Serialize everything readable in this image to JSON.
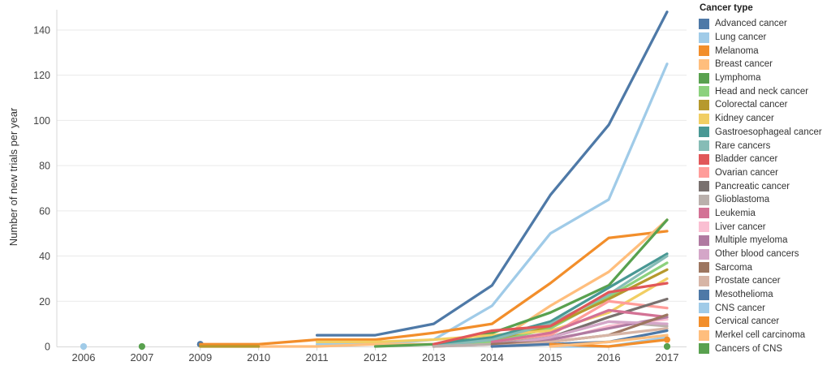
{
  "chart": {
    "legend_title": "Cancer type"
  },
  "chart_data": {
    "type": "line",
    "title": "",
    "xlabel": "",
    "ylabel": "Number of new trials per year",
    "x_labels": [
      "2006",
      "2007",
      "2009",
      "2010",
      "2011",
      "2012",
      "2013",
      "2014",
      "2015",
      "2016",
      "2017"
    ],
    "yticks": [
      0,
      20,
      40,
      60,
      80,
      100,
      120,
      140
    ],
    "ylim": [
      0,
      150
    ],
    "grid": "horizontal",
    "legend_position": "right",
    "legend_title": "Cancer type",
    "axis_text_color": "#444444",
    "grid_color": "#e9e9e9",
    "axis_line_color": "#d7d7d7",
    "series": [
      {
        "name": "Advanced cancer",
        "color": "#4e79a7",
        "values": [
          null,
          null,
          1,
          null,
          5,
          5,
          10,
          27,
          67,
          98,
          148
        ],
        "dots": [
          2
        ]
      },
      {
        "name": "Lung cancer",
        "color": "#a0cbe8",
        "values": [
          0,
          null,
          null,
          null,
          1,
          1,
          3,
          18,
          50,
          65,
          125
        ],
        "dots": [
          0
        ]
      },
      {
        "name": "Melanoma",
        "color": "#f28e2b",
        "values": [
          null,
          null,
          1,
          1,
          3,
          3,
          6,
          10,
          28,
          48,
          51
        ],
        "dots": []
      },
      {
        "name": "Breast cancer",
        "color": "#ffbe7d",
        "values": [
          null,
          null,
          null,
          0,
          0,
          1,
          1,
          1,
          18,
          33,
          56
        ],
        "dots": []
      },
      {
        "name": "Lymphoma",
        "color": "#59a14f",
        "values": [
          null,
          0,
          null,
          null,
          null,
          0,
          1,
          6,
          15,
          27,
          56
        ],
        "dots": [
          1
        ]
      },
      {
        "name": "Head and neck cancer",
        "color": "#8cd17d",
        "values": [
          null,
          null,
          null,
          null,
          null,
          null,
          0,
          2,
          8,
          22,
          37
        ],
        "dots": []
      },
      {
        "name": "Colorectal cancer",
        "color": "#b6992d",
        "values": [
          null,
          null,
          0,
          0,
          null,
          null,
          1,
          3,
          9,
          21,
          34
        ],
        "dots": []
      },
      {
        "name": "Kidney cancer",
        "color": "#f1ce63",
        "values": [
          null,
          null,
          null,
          null,
          2,
          2,
          3,
          5,
          7,
          15,
          30
        ],
        "dots": []
      },
      {
        "name": "Gastroesophageal cancer",
        "color": "#499894",
        "values": [
          null,
          null,
          null,
          null,
          null,
          null,
          1,
          4,
          11,
          26,
          41
        ],
        "dots": []
      },
      {
        "name": "Rare cancers",
        "color": "#86bcb6",
        "values": [
          null,
          null,
          null,
          null,
          null,
          null,
          0,
          3,
          10,
          23,
          40
        ],
        "dots": []
      },
      {
        "name": "Bladder cancer",
        "color": "#e15759",
        "values": [
          null,
          null,
          null,
          null,
          null,
          null,
          1,
          7,
          9,
          24,
          28
        ],
        "dots": []
      },
      {
        "name": "Ovarian cancer",
        "color": "#ff9d9a",
        "values": [
          null,
          null,
          null,
          null,
          null,
          null,
          0,
          1,
          5,
          20,
          17
        ],
        "dots": []
      },
      {
        "name": "Pancreatic cancer",
        "color": "#79706e",
        "values": [
          null,
          null,
          null,
          null,
          null,
          null,
          null,
          1,
          4,
          13,
          21
        ],
        "dots": []
      },
      {
        "name": "Glioblastoma",
        "color": "#bab0ac",
        "values": [
          null,
          null,
          null,
          null,
          null,
          null,
          0,
          1,
          4,
          11,
          9
        ],
        "dots": []
      },
      {
        "name": "Leukemia",
        "color": "#d37295",
        "values": [
          null,
          null,
          null,
          null,
          null,
          null,
          null,
          2,
          6,
          16,
          13
        ],
        "dots": []
      },
      {
        "name": "Liver cancer",
        "color": "#fabfd2",
        "values": [
          null,
          null,
          null,
          null,
          null,
          null,
          null,
          0,
          2,
          9,
          12
        ],
        "dots": []
      },
      {
        "name": "Multiple myeloma",
        "color": "#b07aa1",
        "values": [
          null,
          null,
          null,
          null,
          null,
          null,
          null,
          1,
          3,
          8,
          13
        ],
        "dots": []
      },
      {
        "name": "Other blood cancers",
        "color": "#d4a6c8",
        "values": [
          null,
          null,
          null,
          null,
          null,
          null,
          null,
          0,
          4,
          11,
          10
        ],
        "dots": []
      },
      {
        "name": "Sarcoma",
        "color": "#9d7660",
        "values": [
          null,
          null,
          null,
          null,
          null,
          null,
          null,
          1,
          2,
          5,
          14
        ],
        "dots": []
      },
      {
        "name": "Prostate cancer",
        "color": "#d7b5a6",
        "values": [
          null,
          null,
          null,
          null,
          null,
          null,
          null,
          0,
          2,
          5,
          8
        ],
        "dots": []
      },
      {
        "name": "Mesothelioma",
        "color": "#4e79a7",
        "values": [
          null,
          null,
          null,
          null,
          null,
          null,
          null,
          0,
          1,
          2,
          7
        ],
        "dots": []
      },
      {
        "name": "CNS cancer",
        "color": "#a0cbe8",
        "values": [
          null,
          null,
          null,
          null,
          null,
          null,
          null,
          null,
          0,
          0,
          4
        ],
        "dots": []
      },
      {
        "name": "Cervical cancer",
        "color": "#f28e2b",
        "values": [
          null,
          null,
          null,
          null,
          null,
          null,
          null,
          null,
          1,
          0,
          3
        ],
        "dots": [
          10
        ]
      },
      {
        "name": "Merkel cell carcinoma",
        "color": "#ffbe7d",
        "values": [
          null,
          null,
          null,
          null,
          null,
          null,
          null,
          null,
          0,
          2,
          5
        ],
        "dots": []
      },
      {
        "name": "Cancers of CNS",
        "color": "#59a14f",
        "values": [
          null,
          null,
          null,
          null,
          null,
          null,
          null,
          null,
          null,
          null,
          0
        ],
        "dots": [
          10
        ]
      }
    ]
  }
}
